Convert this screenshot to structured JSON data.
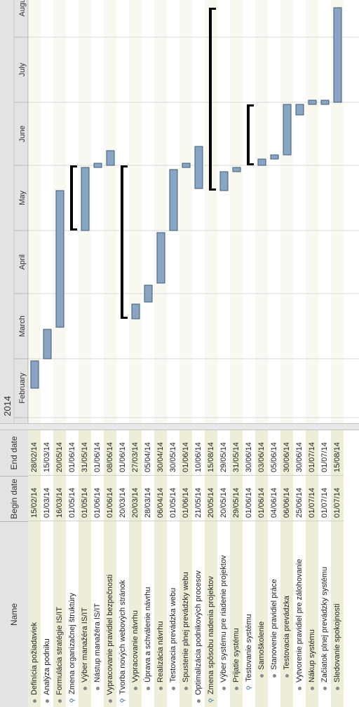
{
  "header": {
    "name": "Name",
    "begin": "Begin date",
    "end": "End date"
  },
  "timeline": {
    "year": "2014",
    "months": [
      "February",
      "March",
      "April",
      "May",
      "June",
      "July",
      "August"
    ]
  },
  "chart_data": {
    "type": "gantt",
    "x_axis": {
      "start": "2014-02-01",
      "end": "2014-08-25",
      "unit": "date"
    },
    "tasks": [
      {
        "name": "Definícia požiadaviek",
        "begin": "15/02/14",
        "end": "28/02/14",
        "start": "2014-02-15",
        "finish": "2014-02-28",
        "type": "task",
        "indent": 0
      },
      {
        "name": "Analýza podniku",
        "begin": "01/03/14",
        "end": "15/03/14",
        "start": "2014-03-01",
        "finish": "2014-03-15",
        "type": "task",
        "indent": 0
      },
      {
        "name": "Formulácia stratégie IS/IT",
        "begin": "16/03/14",
        "end": "20/05/14",
        "start": "2014-03-16",
        "finish": "2014-05-20",
        "type": "task",
        "indent": 0
      },
      {
        "name": "Zmena organizačnej štruktúry",
        "begin": "01/05/14",
        "end": "01/06/14",
        "start": "2014-05-01",
        "finish": "2014-06-01",
        "type": "summary",
        "indent": 0
      },
      {
        "name": "Výber manažéra IS/IT",
        "begin": "01/05/14",
        "end": "31/05/14",
        "start": "2014-05-01",
        "finish": "2014-05-31",
        "type": "task",
        "indent": 1
      },
      {
        "name": "Nástup manažéra IS/IT",
        "begin": "01/06/14",
        "end": "01/06/14",
        "start": "2014-05-31",
        "finish": "2014-06-02",
        "type": "task",
        "indent": 1
      },
      {
        "name": "Vypracovanie pravidiel bezpečnosti",
        "begin": "01/06/14",
        "end": "08/06/14",
        "start": "2014-06-01",
        "finish": "2014-06-08",
        "type": "task",
        "indent": 0
      },
      {
        "name": "Tvorba nových webových stránok",
        "begin": "20/03/14",
        "end": "01/06/14",
        "start": "2014-03-20",
        "finish": "2014-06-01",
        "type": "summary",
        "indent": 0
      },
      {
        "name": "Vypracovanie návrhu",
        "begin": "20/03/14",
        "end": "27/03/14",
        "start": "2014-03-20",
        "finish": "2014-03-27",
        "type": "task",
        "indent": 1
      },
      {
        "name": "Úprava a schválenie návrhu",
        "begin": "28/03/14",
        "end": "05/04/14",
        "start": "2014-03-28",
        "finish": "2014-04-05",
        "type": "task",
        "indent": 1
      },
      {
        "name": "Realizácia návrhu",
        "begin": "06/04/14",
        "end": "30/04/14",
        "start": "2014-04-06",
        "finish": "2014-04-30",
        "type": "task",
        "indent": 1
      },
      {
        "name": "Testovacia prevádzka webu",
        "begin": "01/05/14",
        "end": "30/05/14",
        "start": "2014-05-01",
        "finish": "2014-05-30",
        "type": "task",
        "indent": 1
      },
      {
        "name": "Spustenie plnej prevádzky webu",
        "begin": "01/06/14",
        "end": "01/06/14",
        "start": "2014-05-31",
        "finish": "2014-06-02",
        "type": "task",
        "indent": 1
      },
      {
        "name": "Optimalizácia podnikových procesov",
        "begin": "21/05/14",
        "end": "10/06/14",
        "start": "2014-05-21",
        "finish": "2014-06-10",
        "type": "task",
        "indent": 0
      },
      {
        "name": "Zmena spôsobu nadenia projektov",
        "begin": "20/05/14",
        "end": "15/08/14",
        "start": "2014-05-20",
        "finish": "2014-08-15",
        "type": "summary",
        "indent": 0
      },
      {
        "name": "Výber systému pre riadenie projektov",
        "begin": "20/05/14",
        "end": "29/05/14",
        "start": "2014-05-20",
        "finish": "2014-05-29",
        "type": "task",
        "indent": 1
      },
      {
        "name": "Prijatie systému",
        "begin": "29/05/14",
        "end": "31/05/14",
        "start": "2014-05-29",
        "finish": "2014-05-31",
        "type": "task",
        "indent": 1
      },
      {
        "name": "Testovanie systému",
        "begin": "01/06/14",
        "end": "30/06/14",
        "start": "2014-06-01",
        "finish": "2014-06-30",
        "type": "summary",
        "indent": 1
      },
      {
        "name": "Samoškolenie",
        "begin": "01/06/14",
        "end": "03/06/14",
        "start": "2014-06-01",
        "finish": "2014-06-04",
        "type": "task",
        "indent": 2
      },
      {
        "name": "Stanovenie pravidiel práce",
        "begin": "04/06/14",
        "end": "05/06/14",
        "start": "2014-06-04",
        "finish": "2014-06-06",
        "type": "task",
        "indent": 2
      },
      {
        "name": "Testovacia prevádzka",
        "begin": "06/06/14",
        "end": "30/06/14",
        "start": "2014-06-06",
        "finish": "2014-06-30",
        "type": "task",
        "indent": 2
      },
      {
        "name": "Vytvorenie pravidiel pre zálohovanie",
        "begin": "25/06/14",
        "end": "30/06/14",
        "start": "2014-06-25",
        "finish": "2014-06-30",
        "type": "task",
        "indent": 1
      },
      {
        "name": "Nákup systému",
        "begin": "01/07/14",
        "end": "01/07/14",
        "start": "2014-06-30",
        "finish": "2014-07-02",
        "type": "task",
        "indent": 1
      },
      {
        "name": "Začiatok plnej prevádzky systému",
        "begin": "01/07/14",
        "end": "01/07/14",
        "start": "2014-06-30",
        "finish": "2014-07-02",
        "type": "task",
        "indent": 1
      },
      {
        "name": "Sledovanie spokojnosti",
        "begin": "01/07/14",
        "end": "15/08/14",
        "start": "2014-07-01",
        "finish": "2014-08-15",
        "type": "task",
        "indent": 1
      }
    ]
  },
  "colors": {
    "bar": "#88a6c4",
    "bar_border": "#3e5a76",
    "summary": "#000000",
    "row_alt": "#eeeed8",
    "grid": "#d8d8d8"
  }
}
